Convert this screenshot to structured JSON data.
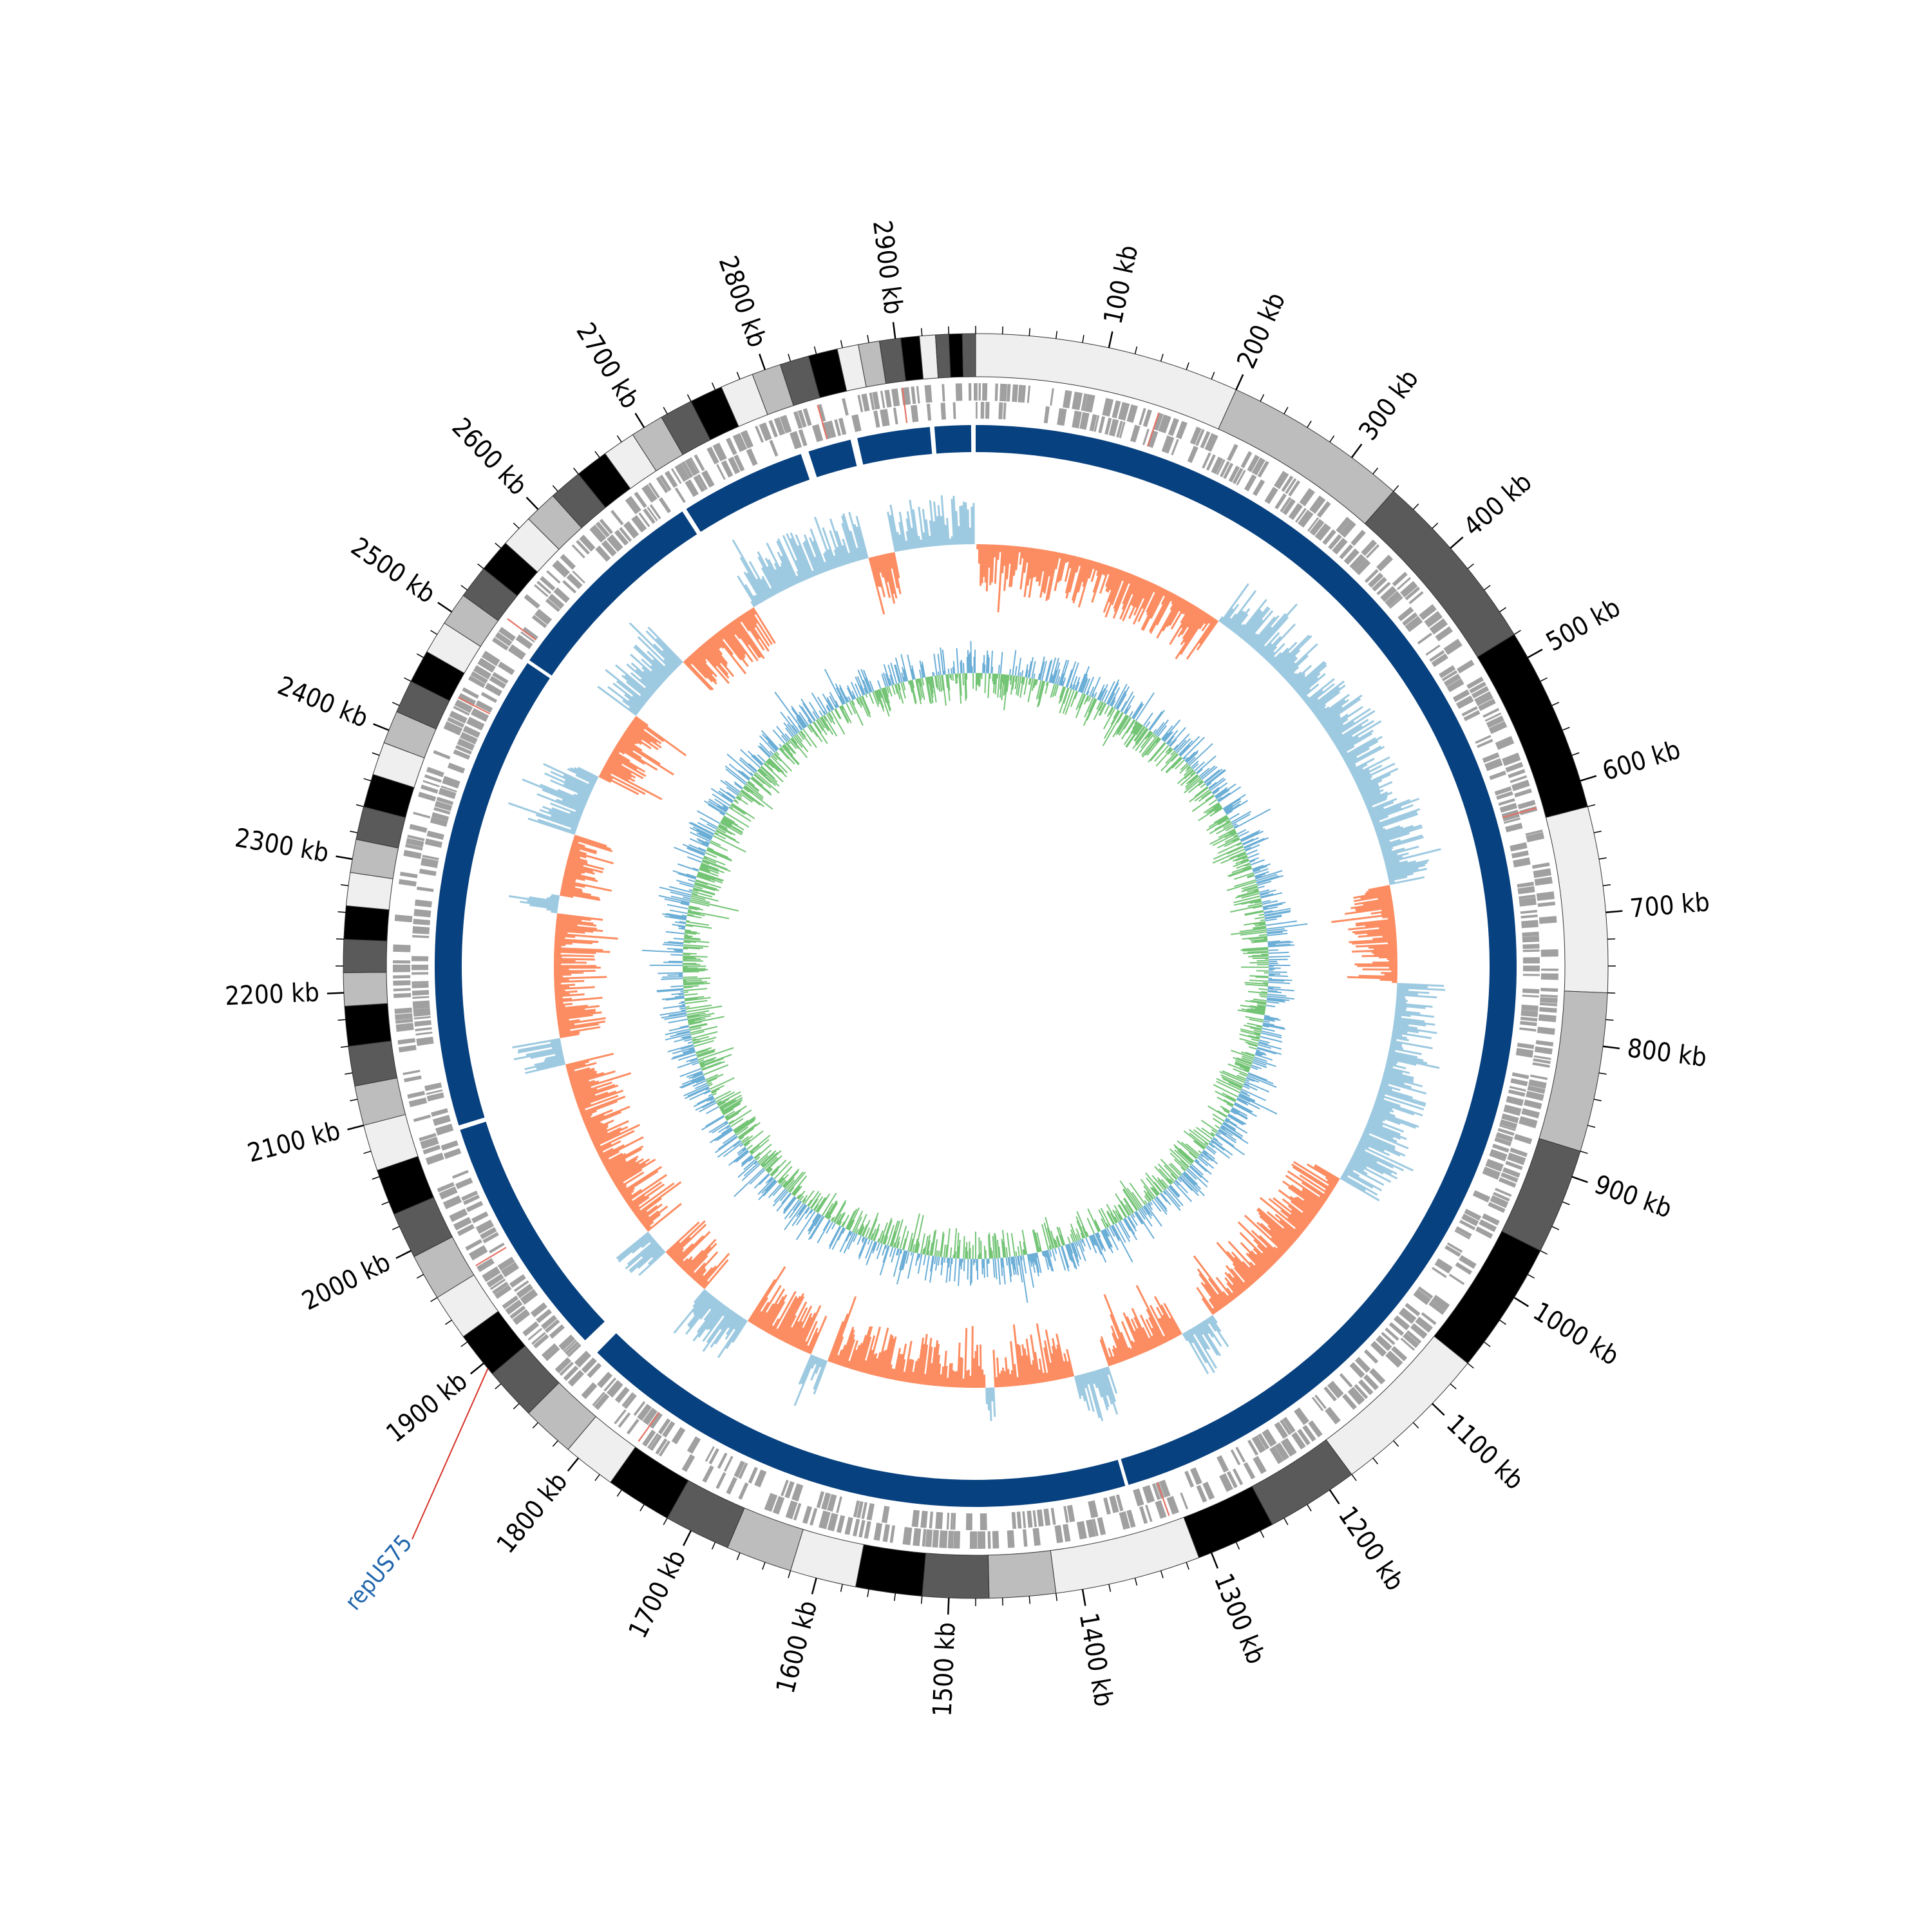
{
  "chart_data": {
    "type": "circular-genome-map",
    "genome_length_kb": 2960,
    "tick_labels": [
      "100 kb",
      "200 kb",
      "300 kb",
      "400 kb",
      "500 kb",
      "600 kb",
      "700 kb",
      "800 kb",
      "900 kb",
      "1000 kb",
      "1100 kb",
      "1200 kb",
      "1300 kb",
      "1400 kb",
      "1500 kb",
      "1600 kb",
      "1700 kb",
      "1800 kb",
      "1900 kb",
      "2000 kb",
      "2100 kb",
      "2200 kb",
      "2300 kb",
      "2400 kb",
      "2500 kb",
      "2600 kb",
      "2700 kb",
      "2800 kb",
      "2900 kb"
    ],
    "tick_positions_kb": [
      100,
      200,
      300,
      400,
      500,
      600,
      700,
      800,
      900,
      1000,
      1100,
      1200,
      1300,
      1400,
      1500,
      1600,
      1700,
      1800,
      1900,
      2000,
      2100,
      2200,
      2300,
      2400,
      2500,
      2600,
      2700,
      2800,
      2900
    ],
    "contig_bands": [
      {
        "start": 0,
        "end": 200,
        "shade": "#efefef"
      },
      {
        "start": 200,
        "end": 340,
        "shade": "#bdbdbd"
      },
      {
        "start": 340,
        "end": 480,
        "shade": "#5a5a5a"
      },
      {
        "start": 480,
        "end": 620,
        "shade": "#000000"
      },
      {
        "start": 620,
        "end": 760,
        "shade": "#efefef"
      },
      {
        "start": 760,
        "end": 880,
        "shade": "#bdbdbd"
      },
      {
        "start": 880,
        "end": 960,
        "shade": "#5a5a5a"
      },
      {
        "start": 960,
        "end": 1060,
        "shade": "#000000"
      },
      {
        "start": 1060,
        "end": 1180,
        "shade": "#efefef"
      },
      {
        "start": 1180,
        "end": 1250,
        "shade": "#5a5a5a"
      },
      {
        "start": 1250,
        "end": 1310,
        "shade": "#000000"
      },
      {
        "start": 1310,
        "end": 1420,
        "shade": "#efefef"
      },
      {
        "start": 1420,
        "end": 1470,
        "shade": "#bdbdbd"
      },
      {
        "start": 1470,
        "end": 1520,
        "shade": "#5a5a5a"
      },
      {
        "start": 1520,
        "end": 1570,
        "shade": "#000000"
      },
      {
        "start": 1570,
        "end": 1620,
        "shade": "#efefef"
      },
      {
        "start": 1620,
        "end": 1670,
        "shade": "#bdbdbd"
      },
      {
        "start": 1670,
        "end": 1720,
        "shade": "#5a5a5a"
      },
      {
        "start": 1720,
        "end": 1770,
        "shade": "#000000"
      },
      {
        "start": 1770,
        "end": 1810,
        "shade": "#efefef"
      },
      {
        "start": 1810,
        "end": 1850,
        "shade": "#bdbdbd"
      },
      {
        "start": 1850,
        "end": 1890,
        "shade": "#5a5a5a"
      },
      {
        "start": 1890,
        "end": 1925,
        "shade": "#000000"
      },
      {
        "start": 1925,
        "end": 1960,
        "shade": "#efefef"
      },
      {
        "start": 1960,
        "end": 1995,
        "shade": "#bdbdbd"
      },
      {
        "start": 1995,
        "end": 2030,
        "shade": "#5a5a5a"
      },
      {
        "start": 2030,
        "end": 2065,
        "shade": "#000000"
      },
      {
        "start": 2065,
        "end": 2100,
        "shade": "#efefef"
      },
      {
        "start": 2100,
        "end": 2130,
        "shade": "#bdbdbd"
      },
      {
        "start": 2130,
        "end": 2160,
        "shade": "#5a5a5a"
      },
      {
        "start": 2160,
        "end": 2190,
        "shade": "#000000"
      },
      {
        "start": 2190,
        "end": 2215,
        "shade": "#bdbdbd"
      },
      {
        "start": 2215,
        "end": 2240,
        "shade": "#5a5a5a"
      },
      {
        "start": 2240,
        "end": 2265,
        "shade": "#000000"
      },
      {
        "start": 2265,
        "end": 2290,
        "shade": "#efefef"
      },
      {
        "start": 2290,
        "end": 2315,
        "shade": "#bdbdbd"
      },
      {
        "start": 2315,
        "end": 2340,
        "shade": "#5a5a5a"
      },
      {
        "start": 2340,
        "end": 2365,
        "shade": "#000000"
      },
      {
        "start": 2365,
        "end": 2390,
        "shade": "#efefef"
      },
      {
        "start": 2390,
        "end": 2415,
        "shade": "#bdbdbd"
      },
      {
        "start": 2415,
        "end": 2440,
        "shade": "#5a5a5a"
      },
      {
        "start": 2440,
        "end": 2465,
        "shade": "#000000"
      },
      {
        "start": 2465,
        "end": 2490,
        "shade": "#efefef"
      },
      {
        "start": 2490,
        "end": 2515,
        "shade": "#bdbdbd"
      },
      {
        "start": 2515,
        "end": 2540,
        "shade": "#5a5a5a"
      },
      {
        "start": 2540,
        "end": 2565,
        "shade": "#000000"
      },
      {
        "start": 2565,
        "end": 2590,
        "shade": "#efefef"
      },
      {
        "start": 2590,
        "end": 2615,
        "shade": "#bdbdbd"
      },
      {
        "start": 2615,
        "end": 2640,
        "shade": "#5a5a5a"
      },
      {
        "start": 2640,
        "end": 2665,
        "shade": "#000000"
      },
      {
        "start": 2665,
        "end": 2690,
        "shade": "#efefef"
      },
      {
        "start": 2690,
        "end": 2715,
        "shade": "#bdbdbd"
      },
      {
        "start": 2715,
        "end": 2740,
        "shade": "#5a5a5a"
      },
      {
        "start": 2740,
        "end": 2765,
        "shade": "#000000"
      },
      {
        "start": 2765,
        "end": 2790,
        "shade": "#efefef"
      },
      {
        "start": 2790,
        "end": 2812,
        "shade": "#bdbdbd"
      },
      {
        "start": 2812,
        "end": 2834,
        "shade": "#5a5a5a"
      },
      {
        "start": 2834,
        "end": 2856,
        "shade": "#000000"
      },
      {
        "start": 2856,
        "end": 2872,
        "shade": "#efefef"
      },
      {
        "start": 2872,
        "end": 2888,
        "shade": "#bdbdbd"
      },
      {
        "start": 2888,
        "end": 2904,
        "shade": "#5a5a5a"
      },
      {
        "start": 2904,
        "end": 2918,
        "shade": "#000000"
      },
      {
        "start": 2918,
        "end": 2930,
        "shade": "#efefef"
      },
      {
        "start": 2930,
        "end": 2940,
        "shade": "#5a5a5a"
      },
      {
        "start": 2940,
        "end": 2950,
        "shade": "#000000"
      },
      {
        "start": 2950,
        "end": 2960,
        "shade": "#5a5a5a"
      }
    ],
    "alignment_blocks": [
      {
        "start": 0,
        "end": 1345
      },
      {
        "start": 1348,
        "end": 1845
      },
      {
        "start": 1860,
        "end": 2075
      },
      {
        "start": 2079,
        "end": 2500
      },
      {
        "start": 2503,
        "end": 2690
      },
      {
        "start": 2694,
        "end": 2805
      },
      {
        "start": 2812,
        "end": 2850
      },
      {
        "start": 2856,
        "end": 2920
      },
      {
        "start": 2924,
        "end": 2956
      }
    ],
    "highlighted_gene": {
      "label": "repUS75",
      "position_kb": 1895,
      "color": "#2166ac",
      "line_color": "#d73027"
    },
    "gc_skew_positive_color": "#fc8d62",
    "gc_skew_negative_color": "#9ecae1",
    "gc_content_above_color": "#74c476",
    "gc_content_below_color": "#6baed6",
    "alignment_color": "#08417f",
    "gene_color": "#a0a0a0"
  }
}
